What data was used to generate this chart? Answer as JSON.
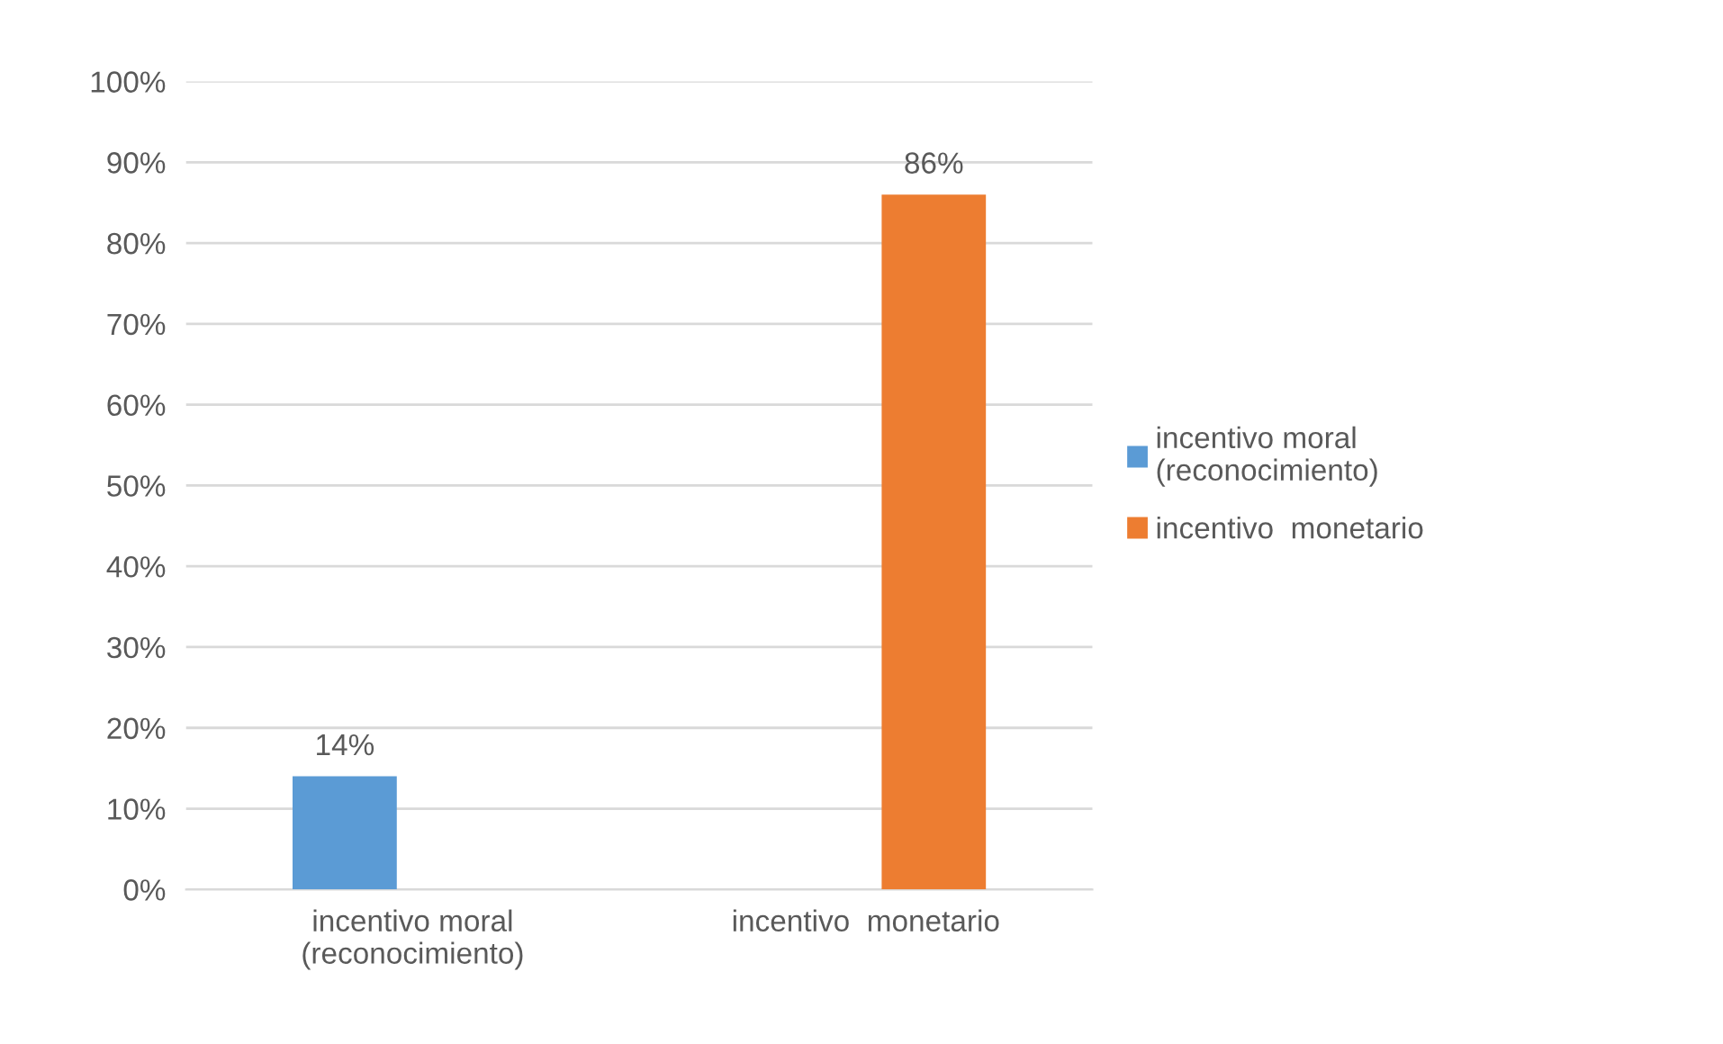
{
  "chart_data": {
    "type": "bar",
    "categories": [
      "incentivo moral (reconocimiento)",
      "incentivo  monetario"
    ],
    "series": [
      {
        "name": "incentivo moral (reconocimiento)",
        "color": "#5b9bd5",
        "values": [
          14,
          null
        ],
        "value_labels": [
          "14%",
          null
        ]
      },
      {
        "name": "incentivo  monetario",
        "color": "#ed7d31",
        "values": [
          null,
          86
        ],
        "value_labels": [
          null,
          "86%"
        ]
      }
    ],
    "ylim": [
      0,
      100
    ],
    "yticks": [
      {
        "value": 0,
        "label": "0%"
      },
      {
        "value": 10,
        "label": "10%"
      },
      {
        "value": 20,
        "label": "20%"
      },
      {
        "value": 30,
        "label": "30%"
      },
      {
        "value": 40,
        "label": "40%"
      },
      {
        "value": 50,
        "label": "50%"
      },
      {
        "value": 60,
        "label": "60%"
      },
      {
        "value": 70,
        "label": "70%"
      },
      {
        "value": 80,
        "label": "80%"
      },
      {
        "value": 90,
        "label": "90%"
      },
      {
        "value": 100,
        "label": "100%"
      }
    ],
    "grid": "y",
    "legend": "right"
  }
}
